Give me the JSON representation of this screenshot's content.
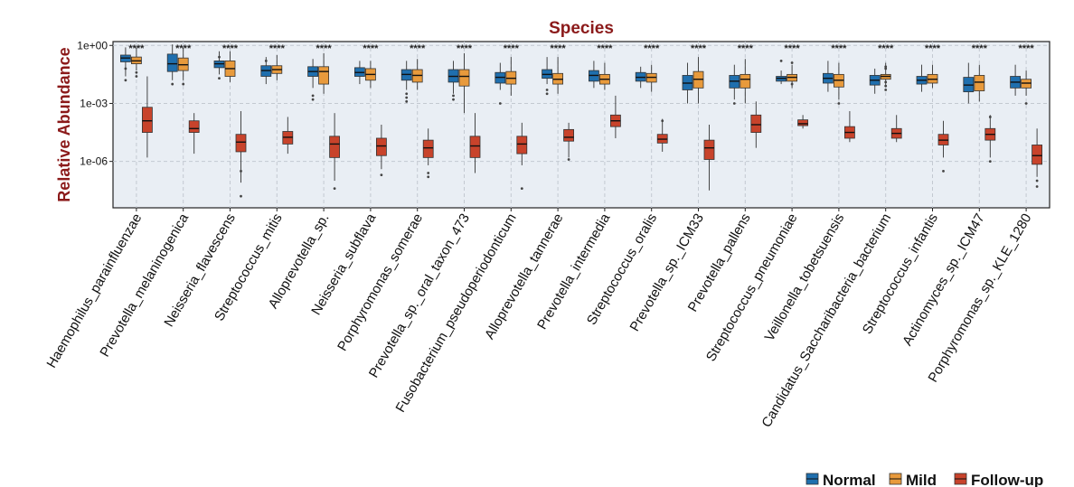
{
  "chart_data": {
    "type": "box",
    "title": "Species",
    "ylabel": "Relative Abundance",
    "xlabel": "",
    "yscale": "log10",
    "ylim_log10": [
      -8.4,
      0.2
    ],
    "y_ticks": [
      {
        "label": "1e+00",
        "log10": 0
      },
      {
        "label": "1e-03",
        "log10": -3
      },
      {
        "label": "1e-06",
        "log10": -6
      }
    ],
    "colors": {
      "Normal": "#1f6fae",
      "Mild": "#e89a3c",
      "Follow-up": "#c8432b"
    },
    "legend": [
      "Normal",
      "Mild",
      "Follow-up"
    ],
    "categories": [
      "Haemophilus_parainfluenzae",
      "Prevotella_melaninogenica",
      "Neisseria_flavescens",
      "Streptococcus_mitis",
      "Alloprevotella_sp.",
      "Neisseria_subflava",
      "Porphyromonas_somerae",
      "Prevotella_sp._oral_taxon_473",
      "Fusobacterium_pseudoperiodonticum",
      "Alloprevotella_tannerae",
      "Prevotella_intermedia",
      "Streptococcus_oralis",
      "Prevotella_sp._ICM33",
      "Prevotella_pallens",
      "Streptococcus_pneumoniae",
      "Veillonella_tobetsuensis",
      "Candidatus_Saccharibacteria_bacterium",
      "Streptococcus_infantis",
      "Actinomyces_sp._ICM47",
      "Porphyromonas_sp._KLE_1280"
    ],
    "significance": [
      "****",
      "****",
      "****",
      "****",
      "****",
      "****",
      "****",
      "****",
      "****",
      "****",
      "****",
      "****",
      "****",
      "****",
      "****",
      "****",
      "****",
      "****",
      "****",
      "****"
    ],
    "series": [
      {
        "name": "Normal",
        "boxes_log10": [
          {
            "min": -1.6,
            "q1": -0.85,
            "median": -0.65,
            "q3": -0.5,
            "max": -0.1,
            "outliers": [
              -1.8,
              -1.2
            ]
          },
          {
            "min": -1.8,
            "q1": -1.35,
            "median": -0.95,
            "q3": -0.45,
            "max": 0.05,
            "outliers": [
              -2.0
            ]
          },
          {
            "min": -1.5,
            "q1": -1.15,
            "median": -0.95,
            "q3": -0.8,
            "max": -0.3,
            "outliers": [
              -1.7,
              -0.6
            ]
          },
          {
            "min": -2.0,
            "q1": -1.6,
            "median": -1.3,
            "q3": -1.05,
            "max": -0.6,
            "outliers": [
              -0.8
            ]
          },
          {
            "min": -2.2,
            "q1": -1.6,
            "median": -1.35,
            "q3": -1.1,
            "max": -0.7,
            "outliers": [
              -2.6,
              -2.8
            ]
          },
          {
            "min": -2.0,
            "q1": -1.6,
            "median": -1.4,
            "q3": -1.15,
            "max": -0.8,
            "outliers": []
          },
          {
            "min": -2.3,
            "q1": -1.8,
            "median": -1.5,
            "q3": -1.25,
            "max": -0.8,
            "outliers": [
              -2.5,
              -2.7,
              -2.9
            ]
          },
          {
            "min": -2.5,
            "q1": -1.9,
            "median": -1.6,
            "q3": -1.25,
            "max": -0.8,
            "outliers": [
              -2.6,
              -2.8
            ]
          },
          {
            "min": -2.3,
            "q1": -1.95,
            "median": -1.65,
            "q3": -1.4,
            "max": -0.9,
            "outliers": [
              -3.0
            ]
          },
          {
            "min": -2.0,
            "q1": -1.7,
            "median": -1.5,
            "q3": -1.25,
            "max": -0.6,
            "outliers": [
              -2.3,
              -2.5
            ]
          },
          {
            "min": -2.2,
            "q1": -1.85,
            "median": -1.55,
            "q3": -1.3,
            "max": -0.8,
            "outliers": []
          },
          {
            "min": -2.2,
            "q1": -1.85,
            "median": -1.65,
            "q3": -1.4,
            "max": -1.1,
            "outliers": []
          },
          {
            "min": -3.0,
            "q1": -2.3,
            "median": -1.95,
            "q3": -1.55,
            "max": -0.9,
            "outliers": []
          },
          {
            "min": -2.8,
            "q1": -2.2,
            "median": -1.85,
            "q3": -1.55,
            "max": -1.0,
            "outliers": [
              -3.0
            ]
          },
          {
            "min": -2.0,
            "q1": -1.85,
            "median": -1.7,
            "q3": -1.6,
            "max": -1.3,
            "outliers": [
              -0.8
            ]
          },
          {
            "min": -2.4,
            "q1": -1.95,
            "median": -1.7,
            "q3": -1.45,
            "max": -0.8,
            "outliers": []
          },
          {
            "min": -2.5,
            "q1": -2.05,
            "median": -1.8,
            "q3": -1.55,
            "max": -1.2,
            "outliers": []
          },
          {
            "min": -2.4,
            "q1": -2.0,
            "median": -1.8,
            "q3": -1.6,
            "max": -1.0,
            "outliers": []
          },
          {
            "min": -3.0,
            "q1": -2.4,
            "median": -2.05,
            "q3": -1.65,
            "max": -0.9,
            "outliers": []
          },
          {
            "min": -2.6,
            "q1": -2.2,
            "median": -1.9,
            "q3": -1.6,
            "max": -1.0,
            "outliers": []
          }
        ]
      },
      {
        "name": "Mild",
        "boxes_log10": [
          {
            "min": -1.3,
            "q1": -0.95,
            "median": -0.8,
            "q3": -0.6,
            "max": -0.1,
            "outliers": [
              -1.6,
              -1.4
            ]
          },
          {
            "min": -1.8,
            "q1": -1.3,
            "median": -1.0,
            "q3": -0.65,
            "max": -0.1,
            "outliers": [
              -2.0
            ]
          },
          {
            "min": -1.9,
            "q1": -1.6,
            "median": -1.2,
            "q3": -0.8,
            "max": -0.3,
            "outliers": []
          },
          {
            "min": -1.8,
            "q1": -1.45,
            "median": -1.25,
            "q3": -1.05,
            "max": -0.5,
            "outliers": []
          },
          {
            "min": -2.5,
            "q1": -2.0,
            "median": -1.35,
            "q3": -1.1,
            "max": -0.4,
            "outliers": []
          },
          {
            "min": -2.2,
            "q1": -1.8,
            "median": -1.5,
            "q3": -1.2,
            "max": -0.8,
            "outliers": []
          },
          {
            "min": -2.3,
            "q1": -1.9,
            "median": -1.55,
            "q3": -1.25,
            "max": -0.7,
            "outliers": []
          },
          {
            "min": -3.5,
            "q1": -2.1,
            "median": -1.6,
            "q3": -1.25,
            "max": -0.4,
            "outliers": []
          },
          {
            "min": -2.6,
            "q1": -2.0,
            "median": -1.7,
            "q3": -1.35,
            "max": -0.6,
            "outliers": []
          },
          {
            "min": -2.5,
            "q1": -2.0,
            "median": -1.75,
            "q3": -1.45,
            "max": -0.6,
            "outliers": []
          },
          {
            "min": -2.3,
            "q1": -2.0,
            "median": -1.75,
            "q3": -1.5,
            "max": -0.9,
            "outliers": []
          },
          {
            "min": -2.4,
            "q1": -1.9,
            "median": -1.65,
            "q3": -1.45,
            "max": -1.0,
            "outliers": []
          },
          {
            "min": -3.0,
            "q1": -2.2,
            "median": -1.75,
            "q3": -1.35,
            "max": -0.6,
            "outliers": []
          },
          {
            "min": -3.0,
            "q1": -2.2,
            "median": -1.75,
            "q3": -1.5,
            "max": -0.7,
            "outliers": []
          },
          {
            "min": -2.2,
            "q1": -1.85,
            "median": -1.65,
            "q3": -1.5,
            "max": -1.0,
            "outliers": [
              -0.9,
              -2.0
            ]
          },
          {
            "min": -2.8,
            "q1": -2.15,
            "median": -1.8,
            "q3": -1.5,
            "max": -0.9,
            "outliers": [
              -3.0
            ]
          },
          {
            "min": -2.1,
            "q1": -1.75,
            "median": -1.6,
            "q3": -1.5,
            "max": -0.9,
            "outliers": [
              -1.1,
              -1.2,
              -1.9,
              -2.1,
              -2.3
            ]
          },
          {
            "min": -2.2,
            "q1": -1.95,
            "median": -1.75,
            "q3": -1.5,
            "max": -1.0,
            "outliers": []
          },
          {
            "min": -2.9,
            "q1": -2.35,
            "median": -1.9,
            "q3": -1.55,
            "max": -1.0,
            "outliers": []
          },
          {
            "min": -2.6,
            "q1": -2.2,
            "median": -1.95,
            "q3": -1.75,
            "max": -1.3,
            "outliers": [
              -3.0
            ]
          }
        ]
      },
      {
        "name": "Follow-up",
        "boxes_log10": [
          {
            "min": -5.8,
            "q1": -4.5,
            "median": -3.9,
            "q3": -3.2,
            "max": -1.6,
            "outliers": []
          },
          {
            "min": -5.6,
            "q1": -4.5,
            "median": -4.3,
            "q3": -3.9,
            "max": -3.5,
            "outliers": []
          },
          {
            "min": -7.1,
            "q1": -5.5,
            "median": -5.0,
            "q3": -4.6,
            "max": -3.4,
            "outliers": [
              -6.5,
              -7.8
            ]
          },
          {
            "min": -5.6,
            "q1": -5.1,
            "median": -4.75,
            "q3": -4.45,
            "max": -3.7,
            "outliers": []
          },
          {
            "min": -7.0,
            "q1": -5.8,
            "median": -5.1,
            "q3": -4.7,
            "max": -3.5,
            "outliers": [
              -7.4
            ]
          },
          {
            "min": -6.4,
            "q1": -5.7,
            "median": -5.2,
            "q3": -4.8,
            "max": -4.1,
            "outliers": [
              -6.7
            ]
          },
          {
            "min": -6.2,
            "q1": -5.8,
            "median": -5.3,
            "q3": -4.9,
            "max": -4.3,
            "outliers": [
              -6.6,
              -6.8
            ]
          },
          {
            "min": -6.6,
            "q1": -5.8,
            "median": -5.2,
            "q3": -4.7,
            "max": -3.5,
            "outliers": []
          },
          {
            "min": -6.2,
            "q1": -5.6,
            "median": -5.1,
            "q3": -4.7,
            "max": -4.0,
            "outliers": [
              -7.4
            ]
          },
          {
            "min": -5.8,
            "q1": -4.95,
            "median": -4.75,
            "q3": -4.35,
            "max": -4.0,
            "outliers": [
              -5.9
            ]
          },
          {
            "min": -4.8,
            "q1": -4.2,
            "median": -3.9,
            "q3": -3.6,
            "max": -2.6,
            "outliers": []
          },
          {
            "min": -5.5,
            "q1": -5.05,
            "median": -4.85,
            "q3": -4.6,
            "max": -3.8,
            "outliers": [
              -3.9
            ]
          },
          {
            "min": -7.5,
            "q1": -5.9,
            "median": -5.3,
            "q3": -4.9,
            "max": -4.1,
            "outliers": []
          },
          {
            "min": -5.3,
            "q1": -4.5,
            "median": -4.1,
            "q3": -3.6,
            "max": -2.9,
            "outliers": []
          },
          {
            "min": -4.3,
            "q1": -4.15,
            "median": -4.05,
            "q3": -3.85,
            "max": -3.6,
            "outliers": []
          },
          {
            "min": -5.0,
            "q1": -4.8,
            "median": -4.5,
            "q3": -4.2,
            "max": -3.4,
            "outliers": []
          },
          {
            "min": -5.0,
            "q1": -4.8,
            "median": -4.55,
            "q3": -4.3,
            "max": -3.6,
            "outliers": []
          },
          {
            "min": -5.8,
            "q1": -5.15,
            "median": -4.9,
            "q3": -4.6,
            "max": -3.9,
            "outliers": [
              -6.5
            ]
          },
          {
            "min": -5.8,
            "q1": -4.9,
            "median": -4.6,
            "q3": -4.3,
            "max": -3.6,
            "outliers": [
              -3.7,
              -6.0
            ]
          },
          {
            "min": -6.8,
            "q1": -6.15,
            "median": -5.7,
            "q3": -5.15,
            "max": -4.3,
            "outliers": [
              -7.0,
              -7.3
            ]
          }
        ]
      }
    ]
  }
}
